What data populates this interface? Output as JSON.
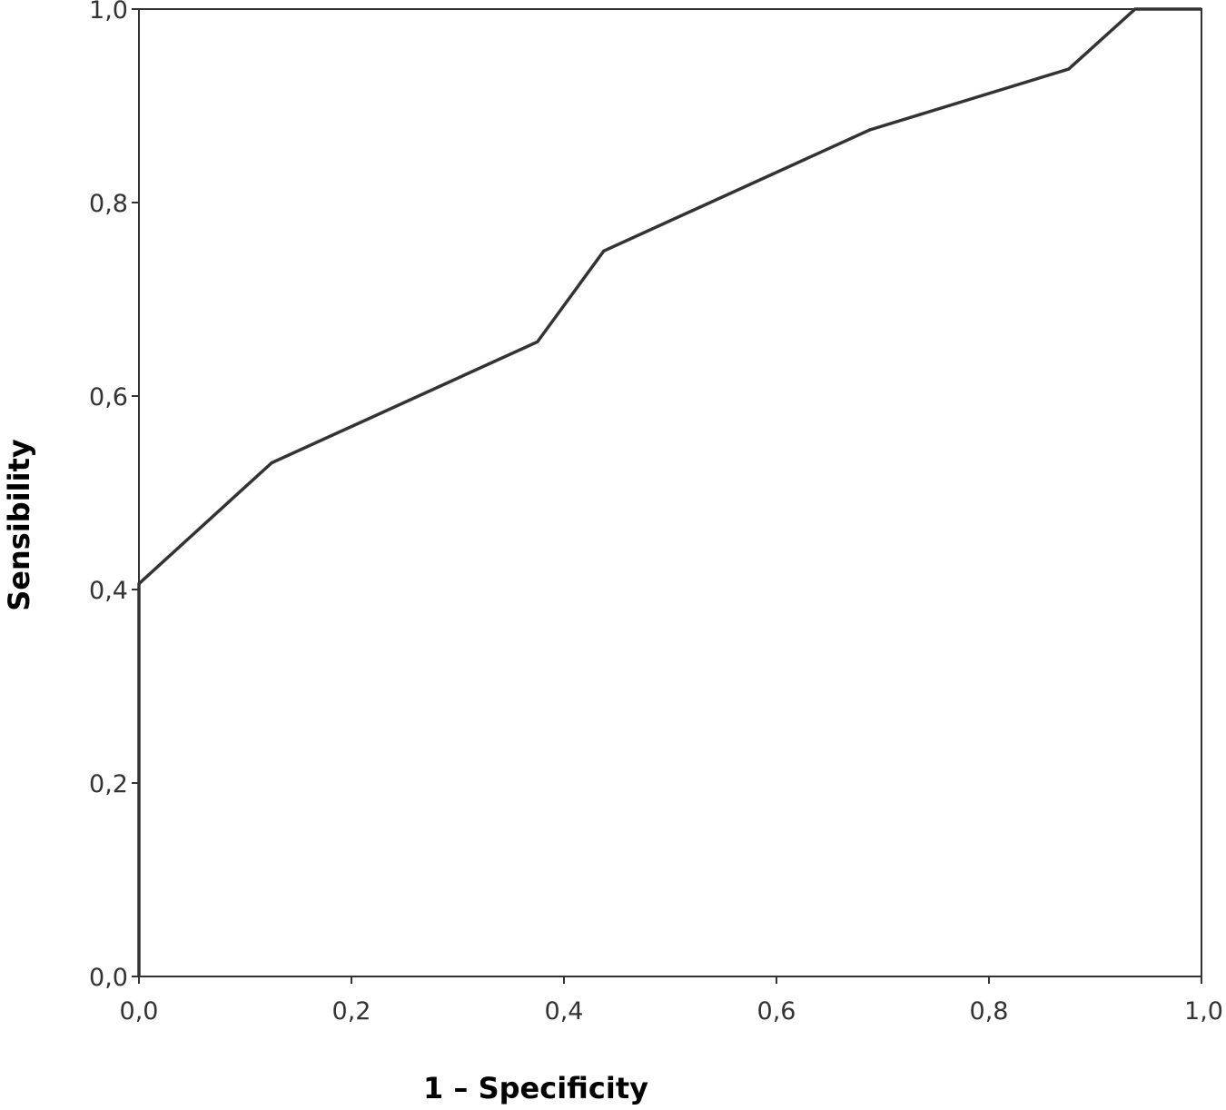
{
  "chart_data": {
    "type": "line",
    "title": "",
    "xlabel": "1 – Specificity",
    "ylabel": "Sensibility",
    "xlim": [
      0.0,
      1.0
    ],
    "ylim": [
      0.0,
      1.0
    ],
    "x_ticks": [
      0.0,
      0.2,
      0.4,
      0.6,
      0.8,
      1.0
    ],
    "y_ticks": [
      0.0,
      0.2,
      0.4,
      0.6,
      0.8,
      1.0
    ],
    "x_tick_labels": [
      "0,0",
      "0,2",
      "0,4",
      "0,6",
      "0,8",
      "1,0"
    ],
    "y_tick_labels": [
      "0,0",
      "0,2",
      "0,4",
      "0,6",
      "0,8",
      "1,0"
    ],
    "grid": false,
    "legend": "none",
    "line_color": "#333333",
    "series": [
      {
        "x": [
          0.0,
          0.0,
          0.125,
          0.375,
          0.4375,
          0.6875,
          0.875,
          0.9375,
          1.0
        ],
        "y": [
          0.0,
          0.406,
          0.531,
          0.656,
          0.75,
          0.875,
          0.938,
          1.0,
          1.0
        ]
      }
    ]
  }
}
